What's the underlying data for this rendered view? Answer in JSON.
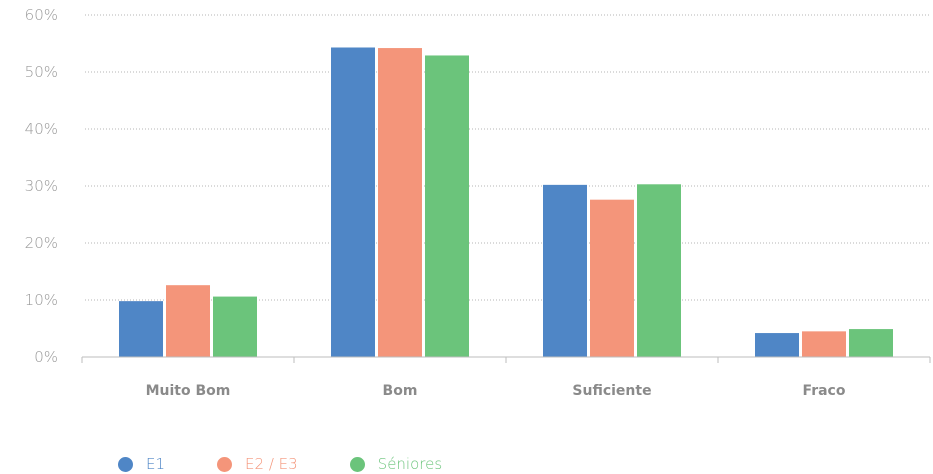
{
  "chart_data": {
    "type": "bar",
    "categories": [
      "Muito Bom",
      "Bom",
      "Suficiente",
      "Fraco"
    ],
    "series": [
      {
        "name": "E1",
        "color": "#4f86c6",
        "values": [
          9.8,
          54.3,
          30.2,
          4.2
        ]
      },
      {
        "name": "E2 / E3",
        "color": "#f4957a",
        "values": [
          12.6,
          54.2,
          27.6,
          4.5
        ]
      },
      {
        "name": "Séniores",
        "color": "#6bc47b",
        "values": [
          10.6,
          52.9,
          30.3,
          4.9
        ]
      }
    ],
    "y_ticks": [
      "0%",
      "10%",
      "20%",
      "30%",
      "40%",
      "50%",
      "60%"
    ],
    "ylim": [
      0,
      60
    ],
    "grid": true,
    "legend_position": "bottom-left"
  }
}
